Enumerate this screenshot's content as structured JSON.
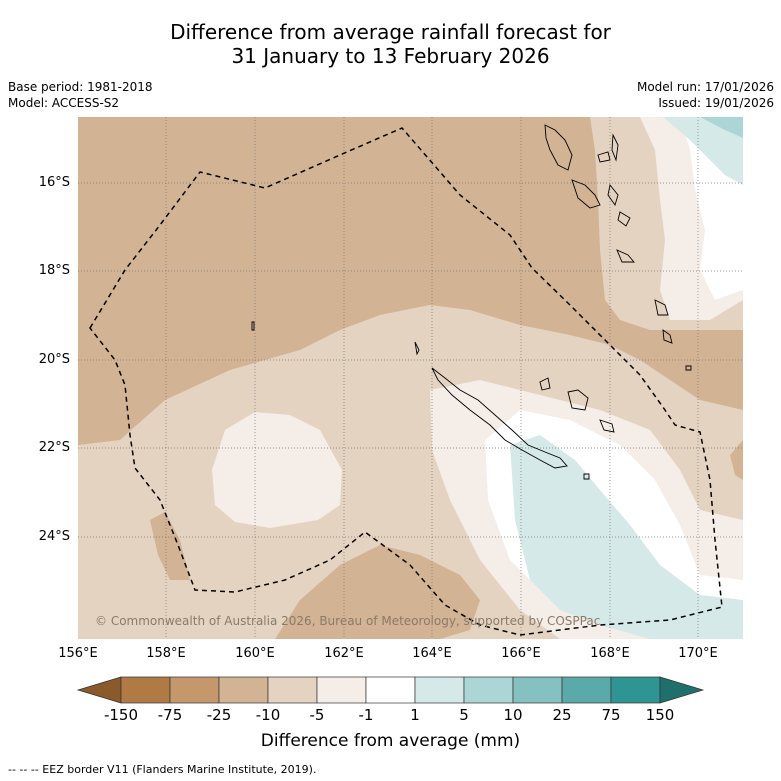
{
  "title_line1": "Difference from average rainfall forecast for",
  "title_line2": "31 January to 13 February 2026",
  "base_period": "Base period: 1981-2018",
  "model": "Model: ACCESS-S2",
  "model_run": "Model run: 17/01/2026",
  "issued": "Issued: 19/01/2026",
  "lat_labels": [
    "16°S",
    "18°S",
    "20°S",
    "22°S",
    "24°S"
  ],
  "lon_labels": [
    "156°E",
    "158°E",
    "160°E",
    "162°E",
    "164°E",
    "166°E",
    "168°E",
    "170°E"
  ],
  "copyright": "© Commonwealth of Australia 2026, Bureau of Meteorology, supported by COSPPac",
  "colorbar": {
    "title": "Difference from average (mm)",
    "ticks": [
      "-150",
      "-75",
      "-25",
      "-10",
      "-5",
      "-1",
      "1",
      "5",
      "10",
      "25",
      "75",
      "150"
    ],
    "colors": [
      "#8b5a2b",
      "#b07a45",
      "#c4976c",
      "#d2b394",
      "#e5d3c2",
      "#f4ede8",
      "#ffffff",
      "#d5e9e8",
      "#acd6d6",
      "#86c1c1",
      "#5aaaa9",
      "#2f9592",
      "#1f706c"
    ]
  },
  "legend_note": "--  --  -- EEZ border V11 (Flanders Marine Institute, 2019)."
}
